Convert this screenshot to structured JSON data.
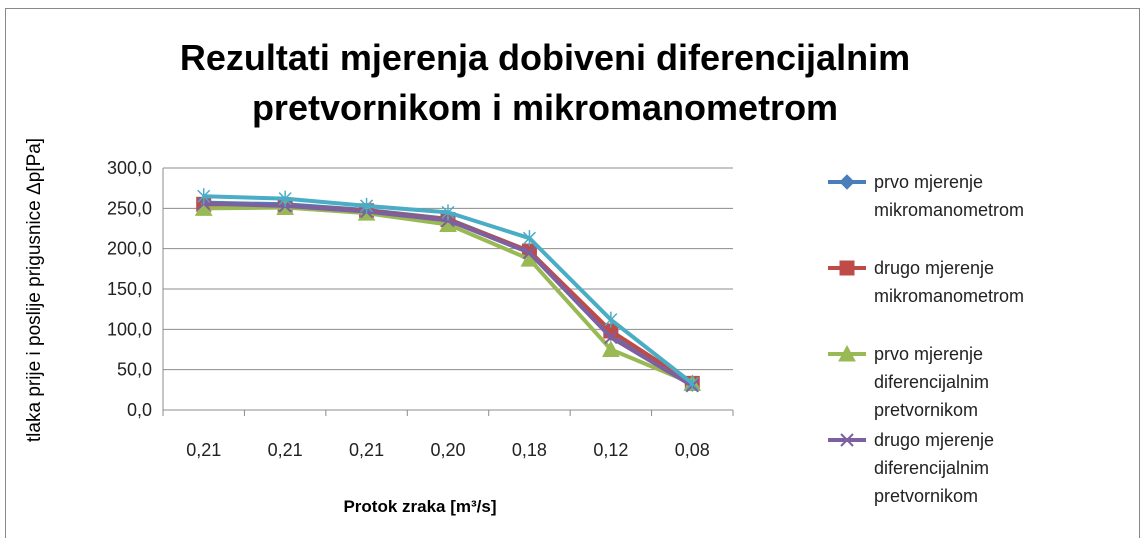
{
  "chart_data": {
    "type": "line",
    "title": [
      "Rezultati mjerenja dobiveni diferencijalnim",
      "pretvornikom i mikromanometrom"
    ],
    "x_label": "Protok zraka [m³/s]",
    "y_label": "tlaka prije i poslije prigusnice Δp[Pa]",
    "categories": [
      "0,21",
      "0,21",
      "0,21",
      "0,20",
      "0,18",
      "0,12",
      "0,08"
    ],
    "series": [
      {
        "name": "prvo mjerenje mikromanometrom",
        "color": "#4a7ebb",
        "marker": "diamond",
        "values": [
          257,
          255,
          248,
          237,
          197,
          95,
          32
        ]
      },
      {
        "name": "drugo mjerenje mikromanometrom",
        "color": "#be4b48",
        "marker": "square",
        "values": [
          255,
          253,
          247,
          236,
          197,
          98,
          33
        ]
      },
      {
        "name": "prvo mjerenje diferencijalnim pretvornikom",
        "color": "#98b954",
        "marker": "triangle",
        "values": [
          250,
          251,
          244,
          230,
          187,
          75,
          33
        ]
      },
      {
        "name": "drugo mjerenje diferencijalnim pretvornikom",
        "color": "#7d60a0",
        "marker": "x",
        "values": [
          256,
          253,
          246,
          235,
          195,
          90,
          30
        ]
      },
      {
        "color": "#4bacc6",
        "marker": "star",
        "values": [
          265,
          262,
          253,
          245,
          213,
          112,
          33
        ]
      }
    ],
    "ylim": [
      0,
      300
    ],
    "yticks": [
      {
        "value": 0,
        "label": "0,0"
      },
      {
        "value": 50,
        "label": "50,0"
      },
      {
        "value": 100,
        "label": "100,0"
      },
      {
        "value": 150,
        "label": "150,0"
      },
      {
        "value": 200,
        "label": "200,0"
      },
      {
        "value": 250,
        "label": "250,0"
      },
      {
        "value": 300,
        "label": "300,0"
      }
    ],
    "grid": true,
    "legend": "right"
  }
}
